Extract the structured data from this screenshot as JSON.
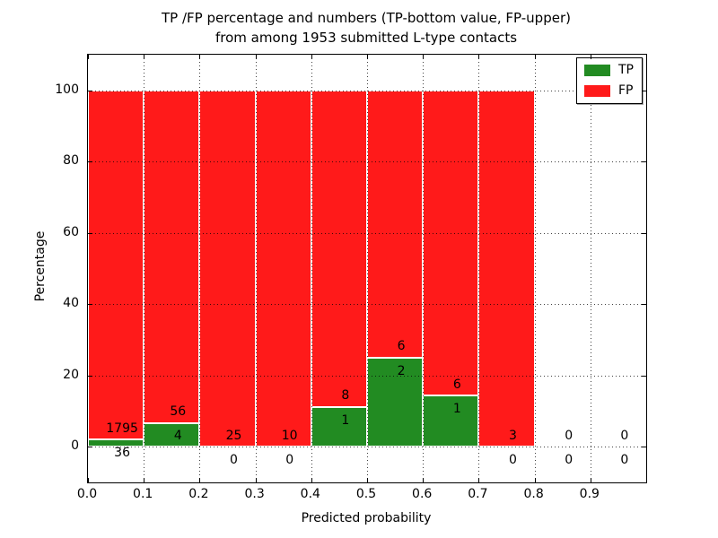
{
  "title": {
    "line1": "TP /FP percentage and numbers (TP-bottom value, FP-upper)",
    "line2": "from among 1953 submitted L-type contacts"
  },
  "axes": {
    "xlabel": "Predicted probability",
    "ylabel": "Percentage"
  },
  "legend": {
    "items": [
      {
        "label": "TP",
        "color": "#228B22"
      },
      {
        "label": "FP",
        "color": "#FF1A1A"
      }
    ]
  },
  "chart_data": {
    "type": "bar",
    "stacked": true,
    "normalized_to": 100,
    "title": "TP /FP percentage and numbers (TP-bottom value, FP-upper) from among 1953 submitted L-type contacts",
    "xlabel": "Predicted probability",
    "ylabel": "Percentage",
    "xlim": [
      0.0,
      1.0
    ],
    "ylim": [
      -10,
      110
    ],
    "xtick_labels": [
      "0.0",
      "0.1",
      "0.2",
      "0.3",
      "0.4",
      "0.5",
      "0.6",
      "0.7",
      "0.8",
      "0.9"
    ],
    "xtick_values": [
      0.0,
      0.1,
      0.2,
      0.3,
      0.4,
      0.5,
      0.6,
      0.7,
      0.8,
      0.9
    ],
    "ytick_values": [
      0,
      20,
      40,
      60,
      80,
      100
    ],
    "grid": true,
    "grid_style": "dotted, drawn above bars",
    "legend_position": "upper right",
    "series": [
      {
        "name": "TP",
        "color": "#228B22",
        "position": "bottom"
      },
      {
        "name": "FP",
        "color": "#FF1A1A",
        "position": "upper"
      }
    ],
    "bins": [
      {
        "x_start": 0.0,
        "x_end": 0.1,
        "tp": 36,
        "fp": 1795
      },
      {
        "x_start": 0.1,
        "x_end": 0.2,
        "tp": 4,
        "fp": 56
      },
      {
        "x_start": 0.2,
        "x_end": 0.3,
        "tp": 0,
        "fp": 25
      },
      {
        "x_start": 0.3,
        "x_end": 0.4,
        "tp": 0,
        "fp": 10
      },
      {
        "x_start": 0.4,
        "x_end": 0.5,
        "tp": 1,
        "fp": 8
      },
      {
        "x_start": 0.5,
        "x_end": 0.6,
        "tp": 2,
        "fp": 6
      },
      {
        "x_start": 0.6,
        "x_end": 0.7,
        "tp": 1,
        "fp": 6
      },
      {
        "x_start": 0.7,
        "x_end": 0.8,
        "tp": 0,
        "fp": 3
      },
      {
        "x_start": 0.8,
        "x_end": 0.9,
        "tp": 0,
        "fp": 0
      },
      {
        "x_start": 0.9,
        "x_end": 1.0,
        "tp": 0,
        "fp": 0
      }
    ],
    "total_contacts": 1953
  },
  "colors": {
    "tp": "#228B22",
    "fp": "#FF1A1A",
    "grid": "#000000",
    "bar_edge": "#ffffff",
    "background": "#ffffff"
  }
}
